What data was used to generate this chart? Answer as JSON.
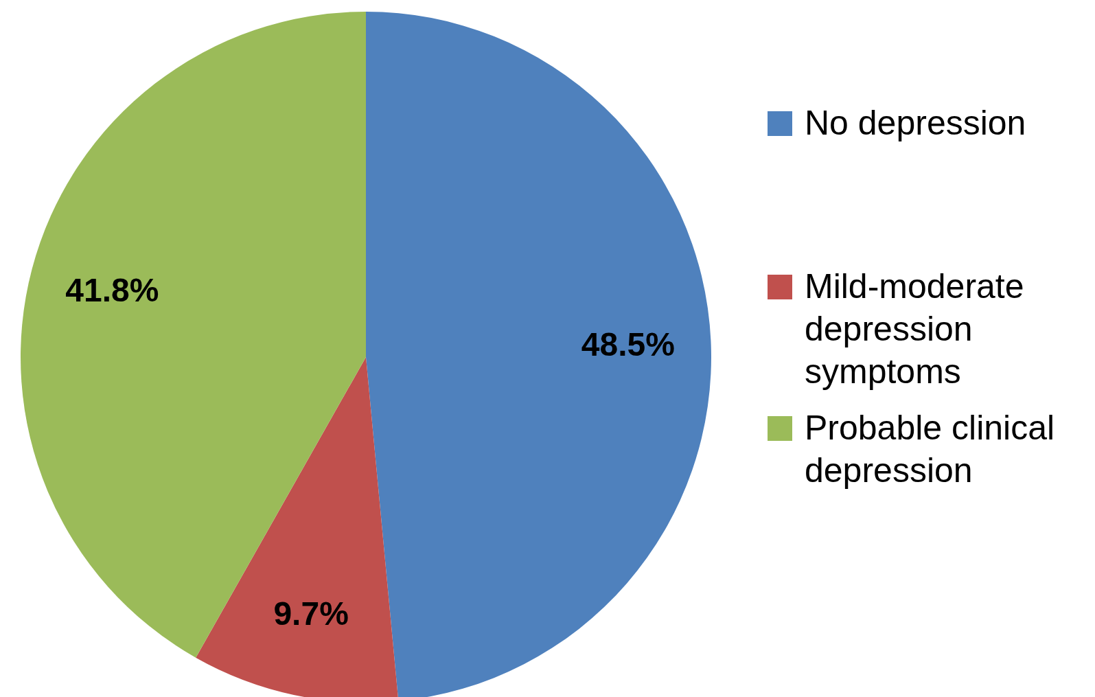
{
  "chart_data": {
    "type": "pie",
    "categories": [
      "No depression",
      "Mild-moderate depression symptoms",
      "Probable clinical depression"
    ],
    "values": [
      48.5,
      9.7,
      41.8
    ],
    "colors": [
      "#4f81bd",
      "#c0504d",
      "#9bbb59"
    ],
    "value_labels": [
      "48.5%",
      "9.7%",
      "41.8%"
    ],
    "legend": "right"
  }
}
